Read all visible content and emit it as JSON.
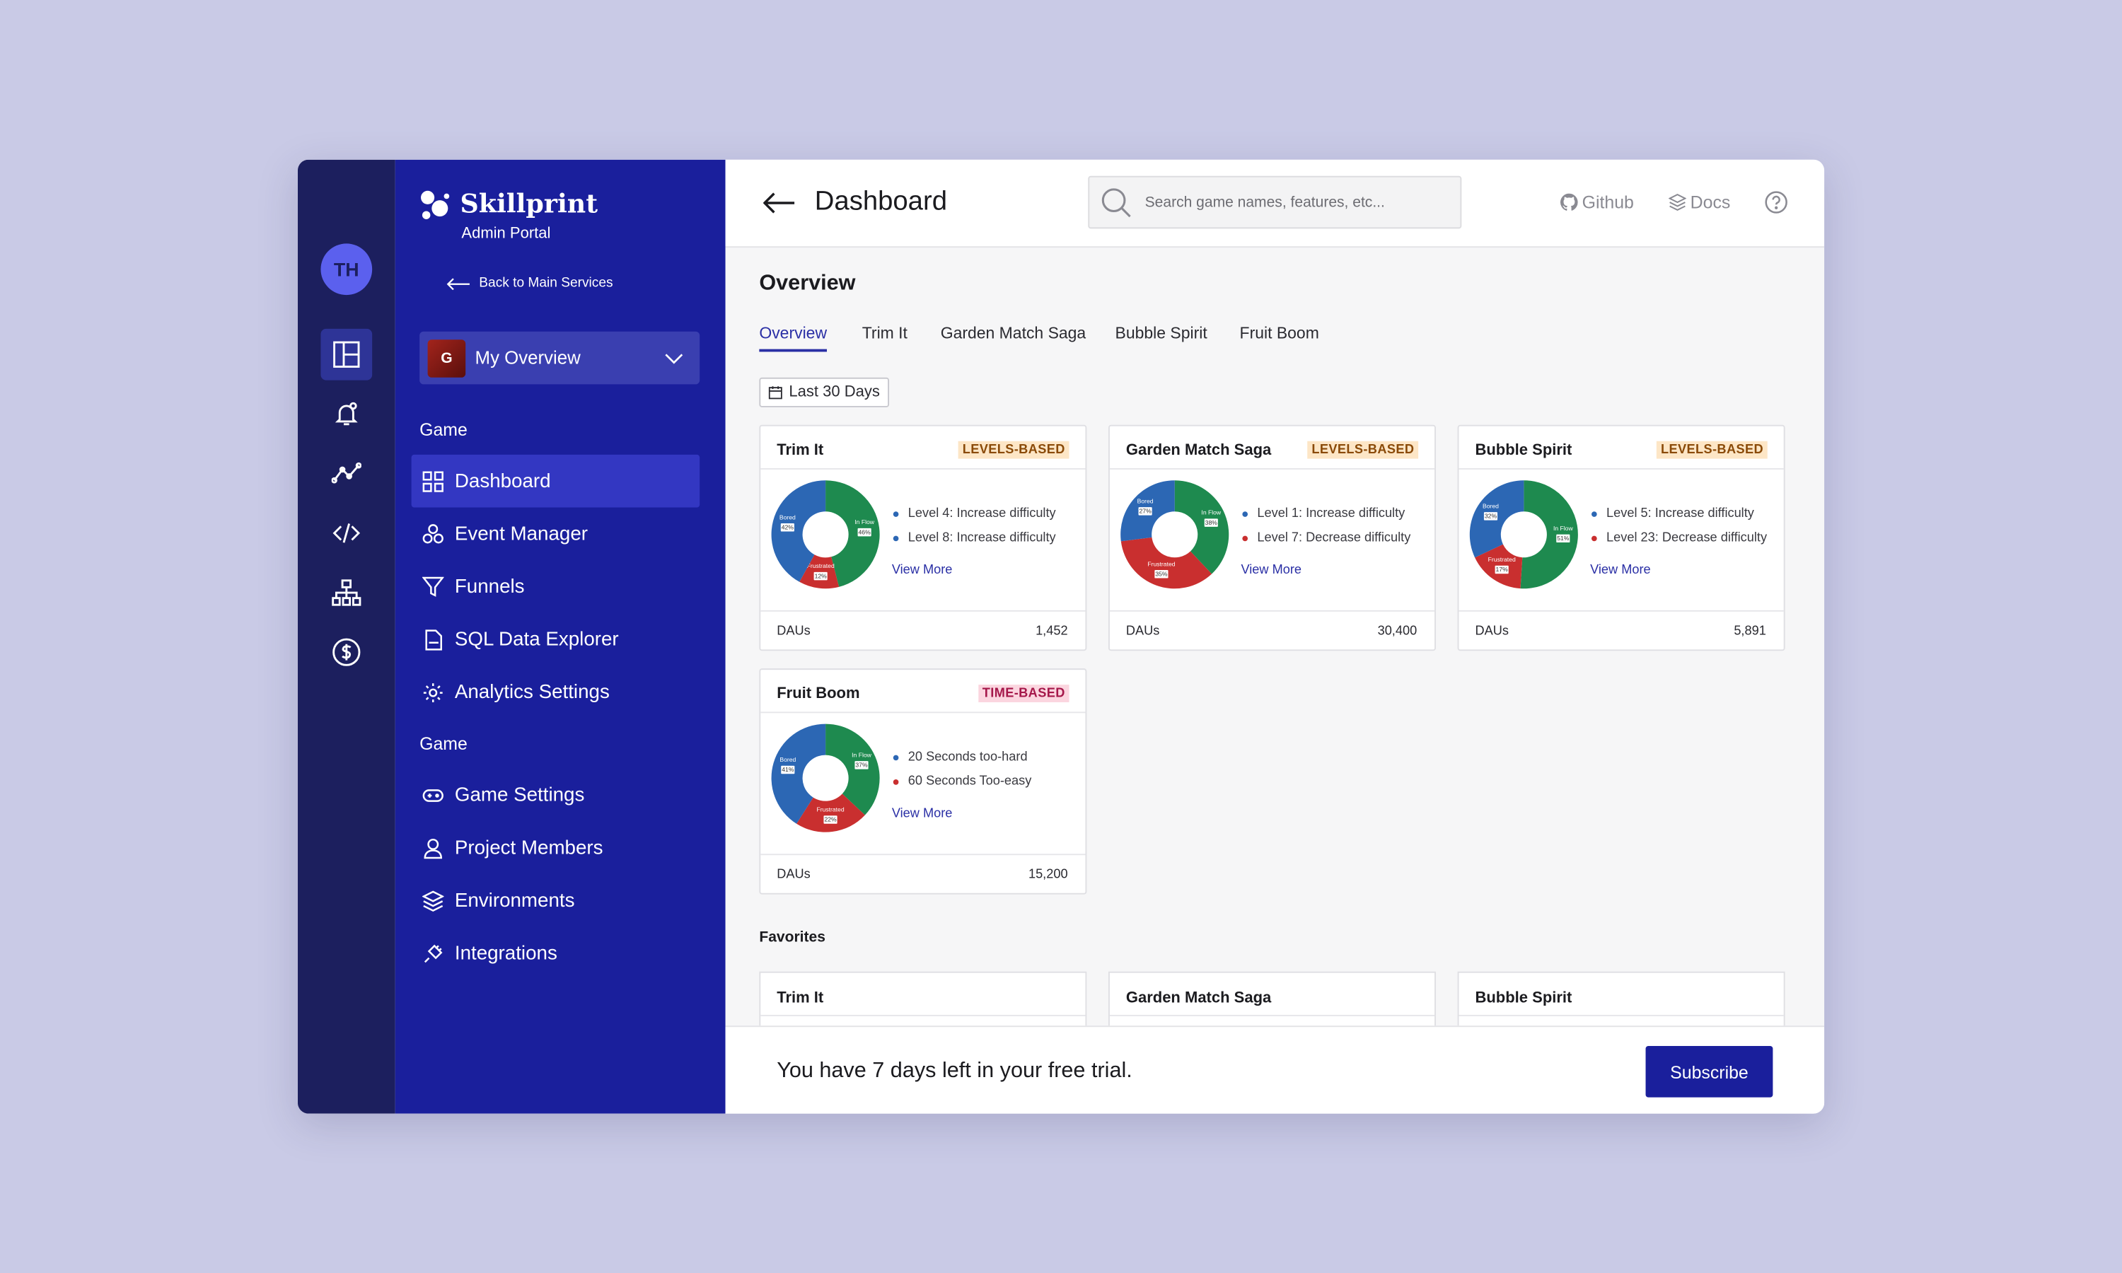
{
  "sidebar": {
    "avatar": "TH"
  },
  "brand": {
    "name": "Skillprint",
    "subtitle": "Admin Portal",
    "back": "Back to Main Services"
  },
  "selector": {
    "initial": "G",
    "label": "My Overview"
  },
  "nav": [
    {
      "heading": "Game",
      "items": [
        "Dashboard",
        "Event Manager",
        "Funnels",
        "SQL Data Explorer",
        "Analytics Settings"
      ]
    },
    {
      "heading": "Game",
      "items": [
        "Game Settings",
        "Project Members",
        "Environments",
        "Integrations"
      ]
    }
  ],
  "header": {
    "title": "Dashboard",
    "search_placeholder": "Search game names, features, etc...",
    "links": [
      "Github",
      "Docs"
    ]
  },
  "overview": {
    "title": "Overview",
    "tabs": [
      "Overview",
      "Trim It",
      "Garden Match Saga",
      "Bubble Spirit",
      "Fruit Boom"
    ],
    "date_filter": "Last 30 Days"
  },
  "cards": [
    {
      "title": "Trim It",
      "badge": "LEVELS-BASED",
      "segments": [
        {
          "name": "In Flow",
          "value": 46,
          "value_label": "46%",
          "color": "#1e8a4f"
        },
        {
          "name": "Frustrated",
          "value": 12,
          "value_label": "12%",
          "color": "#c92f2f"
        },
        {
          "name": "Bored",
          "value": 42,
          "value_label": "42%",
          "color": "#2c67b4"
        }
      ],
      "insights": [
        {
          "text": "Level 4: Increase difficulty",
          "color": "#2c67b4"
        },
        {
          "text": "Level 8: Increase difficulty",
          "color": "#2c67b4"
        }
      ],
      "link": "View More",
      "metric_label": "DAUs",
      "metric_value": "1,452"
    },
    {
      "title": "Garden Match Saga",
      "badge": "LEVELS-BASED",
      "segments": [
        {
          "name": "In Flow",
          "value": 38,
          "value_label": "38%",
          "color": "#1e8a4f"
        },
        {
          "name": "Frustrated",
          "value": 35,
          "value_label": "35%",
          "color": "#c92f2f"
        },
        {
          "name": "Bored",
          "value": 27,
          "value_label": "27%",
          "color": "#2c67b4"
        }
      ],
      "insights": [
        {
          "text": "Level 1: Increase difficulty",
          "color": "#2c67b4"
        },
        {
          "text": "Level 7: Decrease difficulty",
          "color": "#c92f2f"
        }
      ],
      "link": "View More",
      "metric_label": "DAUs",
      "metric_value": "30,400"
    },
    {
      "title": "Bubble Spirit",
      "badge": "LEVELS-BASED",
      "segments": [
        {
          "name": "In Flow",
          "value": 51,
          "value_label": "51%",
          "color": "#1e8a4f"
        },
        {
          "name": "Frustrated",
          "value": 17,
          "value_label": "17%",
          "color": "#c92f2f"
        },
        {
          "name": "Bored",
          "value": 32,
          "value_label": "32%",
          "color": "#2c67b4"
        }
      ],
      "insights": [
        {
          "text": "Level 5: Increase difficulty",
          "color": "#2c67b4"
        },
        {
          "text": "Level 23: Decrease difficulty",
          "color": "#c92f2f"
        }
      ],
      "link": "View More",
      "metric_label": "DAUs",
      "metric_value": "5,891"
    },
    {
      "title": "Fruit Boom",
      "badge": "TIME-BASED",
      "segments": [
        {
          "name": "In Flow",
          "value": 37,
          "value_label": "37%",
          "color": "#1e8a4f"
        },
        {
          "name": "Frustrated",
          "value": 22,
          "value_label": "22%",
          "color": "#c92f2f"
        },
        {
          "name": "Bored",
          "value": 41,
          "value_label": "41%",
          "color": "#2c67b4"
        }
      ],
      "insights": [
        {
          "text": "20 Seconds too-hard",
          "color": "#2c67b4"
        },
        {
          "text": "60 Seconds Too-easy",
          "color": "#c92f2f"
        }
      ],
      "link": "View More",
      "metric_label": "DAUs",
      "metric_value": "15,200"
    }
  ],
  "favorites": {
    "title": "Favorites",
    "items": [
      "Trim It",
      "Garden Match Saga",
      "Bubble Spirit"
    ]
  },
  "trial": {
    "message": "You have 7 days left in your free trial.",
    "button": "Subscribe"
  }
}
